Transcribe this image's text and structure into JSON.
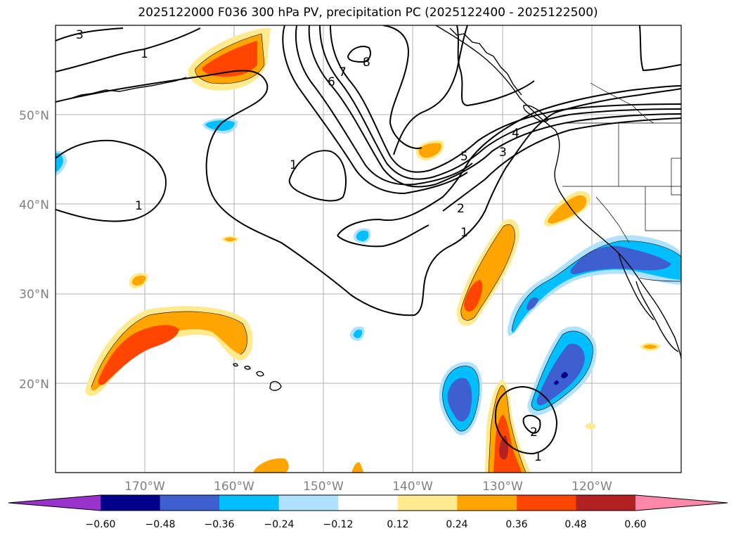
{
  "title": "2025122000 F036 300 hPa PV, precipitation PC (2025122400 - 2025122500)",
  "lon_labels": [
    "170°W",
    "160°W",
    "150°W",
    "140°W",
    "130°W",
    "120°W"
  ],
  "lat_labels": [
    "50°N",
    "40°N",
    "30°N",
    "20°N"
  ],
  "contour_labels": [
    "3",
    "1",
    "8",
    "7",
    "6",
    "5",
    "4",
    "3",
    "2",
    "1",
    "1",
    "1",
    "1",
    "2"
  ],
  "colorbar": {
    "ticks": [
      "−0.60",
      "−0.48",
      "−0.36",
      "−0.24",
      "−0.12",
      "0.12",
      "0.24",
      "0.36",
      "0.48",
      "0.60"
    ],
    "colors": [
      "#9933cc",
      "#00008b",
      "#3d5fcf",
      "#00bfff",
      "#b0e2ff",
      "#ffffff",
      "#ffea8f",
      "#ffa500",
      "#ff4500",
      "#b22222",
      "#ff88aa"
    ]
  },
  "colors": {
    "gridline": "#b0b0b0",
    "coast": "#000000",
    "pos_low": "#ffea8f",
    "pos_mid": "#ffa500",
    "pos_high": "#ff4500",
    "neg_low": "#b0e2ff",
    "neg_mid": "#00bfff",
    "neg_high": "#3d5fcf",
    "neg_max": "#00008b"
  }
}
